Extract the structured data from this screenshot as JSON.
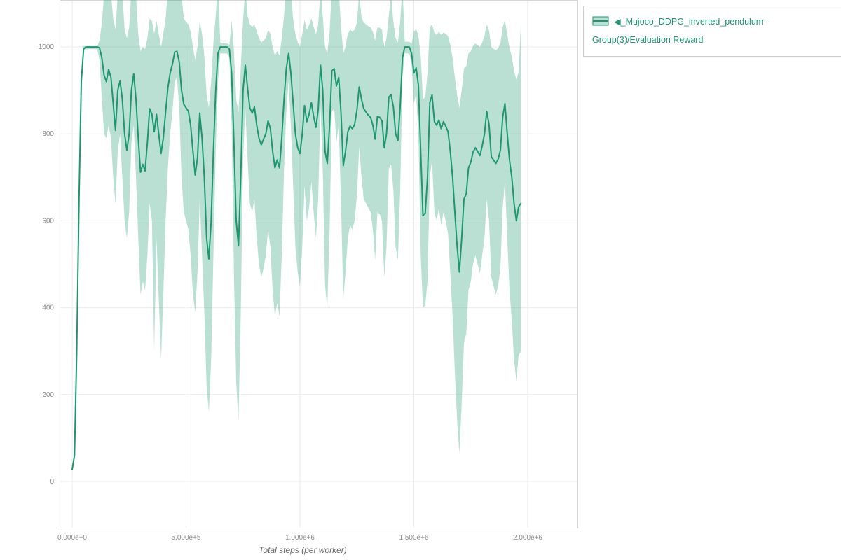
{
  "page": {
    "background": "#ffffff"
  },
  "legend": {
    "label": "◀_Mujoco_DDPG_inverted_pendulum - Group(3)/Evaluation Reward",
    "text_color": "#1e9771",
    "swatch_fill": "#b9e0d1",
    "swatch_line": "#1e9771",
    "border_color": "#cdcdcd"
  },
  "chart_data": {
    "type": "line",
    "title": "",
    "xlabel": "Total steps (per worker)",
    "ylabel": "",
    "grid": true,
    "legend_position": "top-right-outside",
    "xlim": [
      -55385,
      2221538
    ],
    "ylim": [
      -108,
      1108
    ],
    "x_ticks": {
      "values": [
        0,
        500000,
        1000000,
        1500000,
        2000000
      ],
      "labels": [
        "0.000e+0",
        "5.000e+5",
        "1.000e+6",
        "1.500e+6",
        "2.000e+6"
      ]
    },
    "y_ticks": {
      "values": [
        0,
        200,
        400,
        600,
        800,
        1000
      ],
      "labels": [
        "0",
        "200",
        "400",
        "600",
        "800",
        "1000"
      ]
    },
    "colors": {
      "line": "#1e9771",
      "band": "rgba(40,160,120,0.32)",
      "gridline": "#ebebeb",
      "plot_border": "#d4d4d4"
    },
    "series": [
      {
        "name": "◀_Mujoco_DDPG_inverted_pendulum - Group(3)/Evaluation Reward",
        "x_start": 0,
        "x_step": 10000,
        "mean": [
          28,
          60,
          300,
          650,
          920,
          995,
          1000,
          1000,
          1000,
          1000,
          1000,
          1000,
          998,
          975,
          935,
          920,
          948,
          930,
          870,
          808,
          900,
          922,
          880,
          800,
          762,
          800,
          900,
          938,
          880,
          790,
          712,
          730,
          715,
          780,
          858,
          845,
          805,
          845,
          800,
          755,
          790,
          850,
          905,
          940,
          960,
          988,
          990,
          965,
          900,
          868,
          860,
          852,
          820,
          760,
          705,
          745,
          848,
          790,
          700,
          560,
          512,
          600,
          760,
          900,
          985,
          1000,
          1000,
          1000,
          1000,
          995,
          940,
          780,
          600,
          542,
          700,
          900,
          958,
          905,
          860,
          848,
          862,
          820,
          790,
          775,
          788,
          800,
          830,
          812,
          760,
          722,
          740,
          722,
          790,
          880,
          950,
          985,
          940,
          870,
          800,
          768,
          755,
          800,
          865,
          828,
          845,
          872,
          840,
          815,
          855,
          958,
          900,
          760,
          732,
          820,
          945,
          950,
          910,
          930,
          850,
          727,
          760,
          805,
          818,
          812,
          822,
          855,
          908,
          880,
          858,
          850,
          843,
          838,
          820,
          788,
          840,
          838,
          830,
          768,
          800,
          885,
          890,
          862,
          800,
          785,
          862,
          975,
          1000,
          1000,
          1000,
          985,
          940,
          952,
          912,
          760,
          612,
          618,
          700,
          872,
          890,
          828,
          820,
          832,
          812,
          828,
          818,
          805,
          760,
          700,
          620,
          540,
          482,
          560,
          650,
          662,
          722,
          735,
          758,
          768,
          760,
          750,
          772,
          800,
          852,
          822,
          748,
          740,
          732,
          742,
          762,
          838,
          870,
          800,
          740,
          700,
          640,
          600,
          632,
          640
        ],
        "low": [
          27,
          55,
          290,
          640,
          910,
          995,
          995,
          995,
          995,
          995,
          995,
          995,
          970,
          880,
          800,
          790,
          820,
          790,
          700,
          640,
          760,
          800,
          700,
          600,
          560,
          620,
          780,
          820,
          700,
          560,
          430,
          460,
          440,
          520,
          640,
          600,
          300,
          560,
          420,
          280,
          430,
          600,
          720,
          800,
          850,
          920,
          930,
          860,
          700,
          620,
          600,
          580,
          520,
          430,
          390,
          480,
          650,
          520,
          390,
          220,
          160,
          280,
          520,
          760,
          920,
          985,
          985,
          985,
          985,
          975,
          820,
          480,
          230,
          140,
          380,
          740,
          860,
          740,
          640,
          620,
          650,
          560,
          500,
          470,
          490,
          520,
          580,
          540,
          440,
          380,
          410,
          380,
          520,
          720,
          850,
          920,
          820,
          680,
          540,
          480,
          450,
          540,
          680,
          600,
          630,
          690,
          620,
          560,
          650,
          860,
          720,
          450,
          400,
          580,
          850,
          860,
          780,
          820,
          650,
          420,
          480,
          560,
          590,
          580,
          600,
          660,
          770,
          700,
          650,
          640,
          630,
          620,
          580,
          510,
          620,
          615,
          600,
          470,
          540,
          720,
          730,
          670,
          540,
          510,
          670,
          930,
          985,
          985,
          985,
          960,
          870,
          890,
          800,
          520,
          400,
          405,
          460,
          700,
          740,
          620,
          600,
          630,
          590,
          620,
          600,
          570,
          480,
          380,
          250,
          140,
          65,
          180,
          320,
          340,
          440,
          460,
          500,
          520,
          500,
          480,
          520,
          560,
          650,
          600,
          470,
          450,
          430,
          450,
          490,
          630,
          690,
          560,
          440,
          370,
          280,
          230,
          290,
          300
        ],
        "high": [
          30,
          70,
          320,
          670,
          940,
          1002,
          1002,
          1002,
          1002,
          1002,
          1002,
          1002,
          1015,
          1055,
          1120,
          1125,
          1130,
          1125,
          1065,
          1040,
          1120,
          1135,
          1125,
          1040,
          1020,
          1045,
          1130,
          1140,
          1120,
          1030,
          990,
          1000,
          995,
          1020,
          1065,
          1060,
          1030,
          1060,
          1030,
          1000,
          1030,
          1065,
          1130,
          1140,
          1145,
          1150,
          1150,
          1140,
          1120,
          1065,
          1058,
          1052,
          1035,
          1000,
          970,
          1000,
          1058,
          1030,
          980,
          890,
          860,
          920,
          1010,
          1072,
          1145,
          1010,
          1008,
          1008,
          1008,
          1005,
          1062,
          990,
          880,
          850,
          950,
          1062,
          1135,
          1072,
          1052,
          1046,
          1052,
          1036,
          1020,
          1010,
          1015,
          1020,
          1040,
          1030,
          1000,
          980,
          990,
          980,
          1020,
          1072,
          1140,
          1150,
          1135,
          1062,
          1030,
          1010,
          1000,
          1030,
          1062,
          1040,
          1050,
          1066,
          1046,
          1030,
          1050,
          1135,
          1072,
          1000,
          985,
          1035,
          1135,
          1138,
          1120,
          1130,
          1050,
          985,
          1000,
          1030,
          1040,
          1035,
          1040,
          1056,
          1125,
          1068,
          1056,
          1052,
          1048,
          1045,
          1035,
          1015,
          1045,
          1044,
          1040,
          1000,
          1020,
          1072,
          1120,
          1058,
          1020,
          1010,
          1058,
          1142,
          1012,
          1012,
          1012,
          1008,
          1035,
          1042,
          1025,
          980,
          880,
          885,
          940,
          1045,
          1052,
          1032,
          1028,
          1035,
          1028,
          1033,
          1030,
          1025,
          1005,
          975,
          930,
          890,
          860,
          900,
          950,
          955,
          985,
          990,
          1002,
          1008,
          1004,
          1000,
          1010,
          1025,
          1052,
          1038,
          1000,
          996,
          992,
          997,
          1008,
          1046,
          1062,
          1028,
          998,
          978,
          945,
          925,
          942,
          1055
        ]
      }
    ]
  }
}
